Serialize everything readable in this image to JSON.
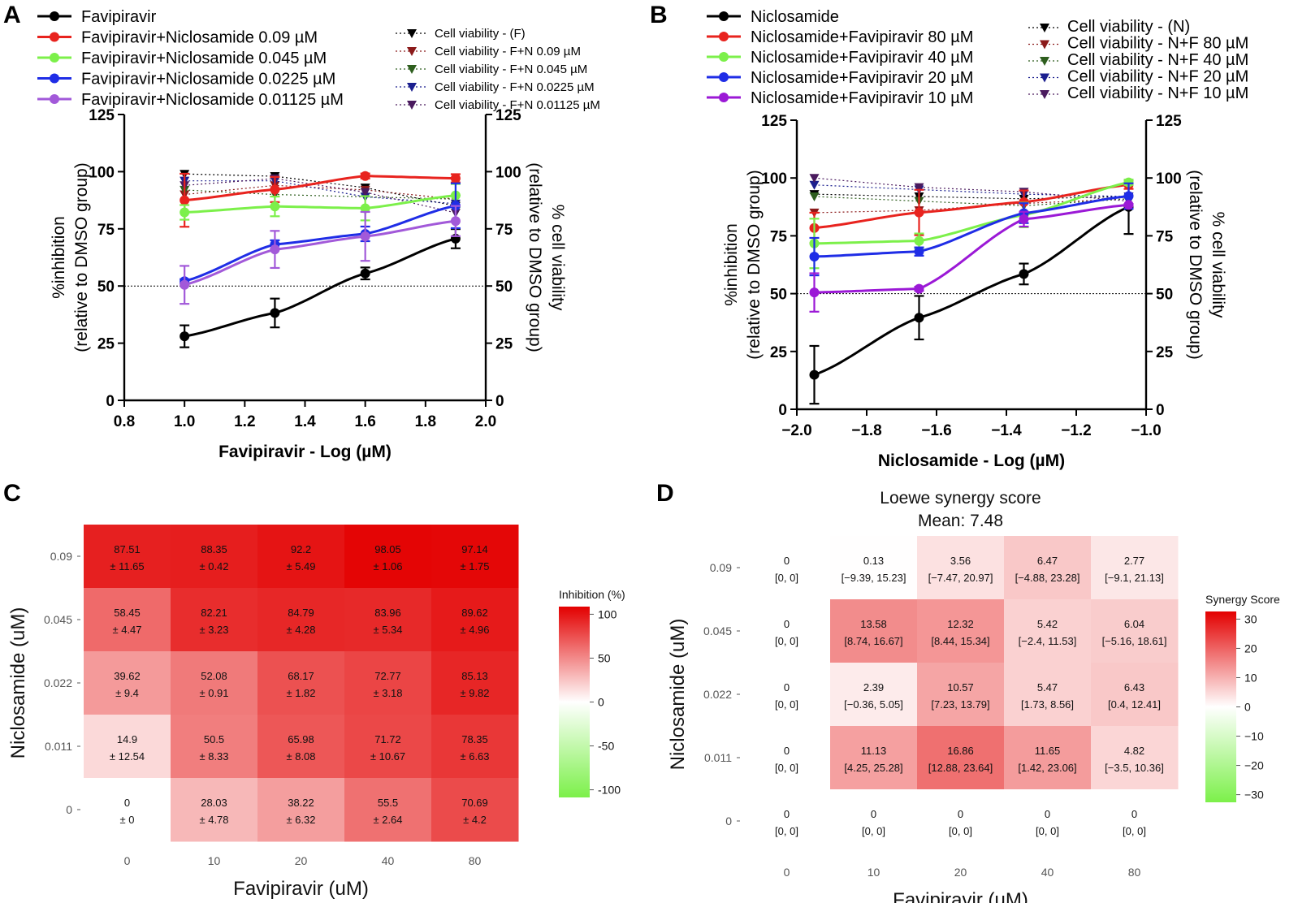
{
  "panels": {
    "A": "A",
    "B": "B",
    "C": "C",
    "D": "D"
  },
  "chart_data": [
    {
      "id": "A",
      "type": "line",
      "xlabel": "Favipiravir - Log (µM)",
      "ylabel_left": [
        "%inhibition",
        "(relative to DMSO group)"
      ],
      "ylabel_right": [
        "% cell viability",
        "(relative to DMSO group)"
      ],
      "xlim": [
        0.8,
        2.0
      ],
      "xticks": [
        "0.8",
        "1.0",
        "1.2",
        "1.4",
        "1.6",
        "1.8",
        "2.0"
      ],
      "ylim": [
        0,
        125
      ],
      "yticks": [
        "0",
        "25",
        "50",
        "75",
        "100",
        "125"
      ],
      "reference_line": 50,
      "x": [
        1.0,
        1.3,
        1.6,
        1.9
      ],
      "series": [
        {
          "name": "Favipiravir",
          "color": "#000000",
          "values": [
            28,
            38.2,
            55.5,
            70.7
          ],
          "errors": [
            4.8,
            6.3,
            2.6,
            4.2
          ]
        },
        {
          "name": "Favipiravir+Niclosamide 0.09 µM",
          "color": "#e8231e",
          "values": [
            87.5,
            92.2,
            98.1,
            97.1
          ],
          "errors": [
            11.6,
            5.5,
            1.1,
            1.8
          ]
        },
        {
          "name": "Favipiravir+Niclosamide 0.045 µM",
          "color": "#7cf04a",
          "values": [
            82.2,
            84.8,
            84,
            89.6
          ],
          "errors": [
            3.2,
            4.3,
            5.3,
            5
          ]
        },
        {
          "name": "Favipiravir+Niclosamide 0.0225 µM",
          "color": "#1f2de6",
          "values": [
            52.1,
            68.2,
            72.8,
            85.1
          ],
          "errors": [
            0.9,
            1.8,
            3.2,
            9.8
          ]
        },
        {
          "name": "Favipiravir+Niclosamide 0.01125 µM",
          "color": "#a259d9",
          "values": [
            50.5,
            66,
            71.7,
            78.4
          ],
          "errors": [
            8.3,
            8.1,
            10.7,
            6.6
          ]
        }
      ],
      "viability_series": [
        {
          "name": "Cell viability - (F)",
          "color": "#000000",
          "values": [
            99,
            98,
            93,
            85
          ]
        },
        {
          "name": "Cell viability - F+N 0.09 µM",
          "color": "#8b1a1a",
          "values": [
            90,
            94,
            92,
            88
          ]
        },
        {
          "name": "Cell viability - F+N 0.045 µM",
          "color": "#2e5e1e",
          "values": [
            92,
            90,
            89,
            88
          ]
        },
        {
          "name": "Cell viability - F+N 0.0225 µM",
          "color": "#1b1f8f",
          "values": [
            96,
            96,
            89,
            86
          ]
        },
        {
          "name": "Cell viability - F+N 0.01125 µM",
          "color": "#4a1a5e",
          "values": [
            94,
            97,
            91,
            82
          ]
        }
      ]
    },
    {
      "id": "B",
      "type": "line",
      "xlabel": "Niclosamide - Log (µM)",
      "ylabel_left": [
        "%inhibition",
        "(relative to DMSO group)"
      ],
      "ylabel_right": [
        "% cell viability",
        "(relative to DMSO group)"
      ],
      "xlim": [
        -2.0,
        -1.0
      ],
      "xticks": [
        "−2.0",
        "−1.8",
        "−1.6",
        "−1.4",
        "−1.2",
        "−1.0"
      ],
      "ylim": [
        0,
        125
      ],
      "yticks": [
        "0",
        "25",
        "50",
        "75",
        "100",
        "125"
      ],
      "reference_line": 50,
      "x": [
        -1.95,
        -1.65,
        -1.35,
        -1.05
      ],
      "series": [
        {
          "name": "Niclosamide",
          "color": "#000000",
          "values": [
            14.9,
            39.6,
            58.5,
            87.5
          ],
          "errors": [
            12.5,
            9.4,
            4.5,
            11.7
          ]
        },
        {
          "name": "Niclosamide+Favipiravir 80 µM",
          "color": "#e8231e",
          "values": [
            78.4,
            85.1,
            89.6,
            97.1
          ],
          "errors": [
            6.6,
            9.8,
            5,
            1.8
          ]
        },
        {
          "name": "Niclosamide+Favipiravir 40 µM",
          "color": "#7cf04a",
          "values": [
            71.7,
            72.8,
            84,
            98.1
          ],
          "errors": [
            10.7,
            3.2,
            5.3,
            1.1
          ]
        },
        {
          "name": "Niclosamide+Favipiravir 20 µM",
          "color": "#1f2de6",
          "values": [
            66,
            68.2,
            84.8,
            92.2
          ],
          "errors": [
            8.1,
            1.8,
            4.3,
            5.5
          ]
        },
        {
          "name": "Niclosamide+Favipiravir 10 µM",
          "color": "#9b19d6",
          "values": [
            50.5,
            52.1,
            82.2,
            88.4
          ],
          "errors": [
            8.3,
            0.9,
            3.2,
            0.4
          ]
        }
      ],
      "viability_series": [
        {
          "name": "Cell viability - (N)",
          "color": "#000000",
          "values": [
            93,
            92,
            91,
            92
          ]
        },
        {
          "name": "Cell viability - N+F 80 µM",
          "color": "#8b1a1a",
          "values": [
            85,
            86,
            89,
            91
          ]
        },
        {
          "name": "Cell viability - N+F 40 µM",
          "color": "#2e5e1e",
          "values": [
            92,
            90,
            88,
            91
          ]
        },
        {
          "name": "Cell viability - N+F 20 µM",
          "color": "#1b1f8f",
          "values": [
            97,
            95,
            93,
            92
          ]
        },
        {
          "name": "Cell viability - N+F 10 µM",
          "color": "#4a1a5e",
          "values": [
            100,
            96,
            94,
            90
          ]
        }
      ]
    },
    {
      "id": "C",
      "type": "heatmap",
      "xlabel": "Favipiravir (uM)",
      "ylabel": "Niclosamide (uM)",
      "xticks": [
        "0",
        "10",
        "20",
        "40",
        "80"
      ],
      "yticks": [
        "0.09",
        "0.045",
        "0.022",
        "0.011",
        "0"
      ],
      "colorbar_title": "Inhibition (%)",
      "colorbar_ticks": [
        "100",
        "50",
        "0",
        "-50",
        "-100"
      ],
      "range": [
        -100,
        100
      ],
      "values": [
        [
          87.51,
          88.35,
          92.2,
          98.05,
          97.14
        ],
        [
          58.45,
          82.21,
          84.79,
          83.96,
          89.62
        ],
        [
          39.62,
          52.08,
          68.17,
          72.77,
          85.13
        ],
        [
          14.9,
          50.5,
          65.98,
          71.72,
          78.35
        ],
        [
          0,
          28.03,
          38.22,
          55.5,
          70.69
        ]
      ],
      "labels": [
        [
          [
            "87.51",
            "± 11.65"
          ],
          [
            "88.35",
            "± 0.42"
          ],
          [
            "92.2",
            "± 5.49"
          ],
          [
            "98.05",
            "± 1.06"
          ],
          [
            "97.14",
            "± 1.75"
          ]
        ],
        [
          [
            "58.45",
            "± 4.47"
          ],
          [
            "82.21",
            "± 3.23"
          ],
          [
            "84.79",
            "± 4.28"
          ],
          [
            "83.96",
            "± 5.34"
          ],
          [
            "89.62",
            "± 4.96"
          ]
        ],
        [
          [
            "39.62",
            "± 9.4"
          ],
          [
            "52.08",
            "± 0.91"
          ],
          [
            "68.17",
            "± 1.82"
          ],
          [
            "72.77",
            "± 3.18"
          ],
          [
            "85.13",
            "± 9.82"
          ]
        ],
        [
          [
            "14.9",
            "± 12.54"
          ],
          [
            "50.5",
            "± 8.33"
          ],
          [
            "65.98",
            "± 8.08"
          ],
          [
            "71.72",
            "± 10.67"
          ],
          [
            "78.35",
            "± 6.63"
          ]
        ],
        [
          [
            "0",
            "± 0"
          ],
          [
            "28.03",
            "± 4.78"
          ],
          [
            "38.22",
            "± 6.32"
          ],
          [
            "55.5",
            "± 2.64"
          ],
          [
            "70.69",
            "± 4.2"
          ]
        ]
      ]
    },
    {
      "id": "D",
      "type": "heatmap",
      "title": "Loewe synergy score",
      "subtitle": "Mean: 7.48",
      "xlabel": "Favipiravir (uM)",
      "ylabel": "Niclosamide (uM)",
      "xticks": [
        "0",
        "10",
        "20",
        "40",
        "80"
      ],
      "yticks": [
        "0.09",
        "0.045",
        "0.022",
        "0.011",
        "0"
      ],
      "colorbar_title": "Synergy Score",
      "colorbar_ticks": [
        "30",
        "20",
        "10",
        "0",
        "−10",
        "−20",
        "−30"
      ],
      "range": [
        -30,
        30
      ],
      "values": [
        [
          0,
          0.13,
          3.56,
          6.47,
          2.77
        ],
        [
          0,
          13.58,
          12.32,
          5.42,
          6.04
        ],
        [
          0,
          2.39,
          10.57,
          5.47,
          6.43
        ],
        [
          0,
          11.13,
          16.86,
          11.65,
          4.82
        ],
        [
          0,
          0,
          0,
          0,
          0
        ]
      ],
      "labels": [
        [
          [
            "0",
            "[0, 0]"
          ],
          [
            "0.13",
            "[−9.39, 15.23]"
          ],
          [
            "3.56",
            "[−7.47, 20.97]"
          ],
          [
            "6.47",
            "[−4.88, 23.28]"
          ],
          [
            "2.77",
            "[−9.1, 21.13]"
          ]
        ],
        [
          [
            "0",
            "[0, 0]"
          ],
          [
            "13.58",
            "[8.74, 16.67]"
          ],
          [
            "12.32",
            "[8.44, 15.34]"
          ],
          [
            "5.42",
            "[−2.4, 11.53]"
          ],
          [
            "6.04",
            "[−5.16, 18.61]"
          ]
        ],
        [
          [
            "0",
            "[0, 0]"
          ],
          [
            "2.39",
            "[−0.36, 5.05]"
          ],
          [
            "10.57",
            "[7.23, 13.79]"
          ],
          [
            "5.47",
            "[1.73, 8.56]"
          ],
          [
            "6.43",
            "[0.4, 12.41]"
          ]
        ],
        [
          [
            "0",
            "[0, 0]"
          ],
          [
            "11.13",
            "[4.25, 25.28]"
          ],
          [
            "16.86",
            "[12.88, 23.64]"
          ],
          [
            "11.65",
            "[1.42, 23.06]"
          ],
          [
            "4.82",
            "[−3.5, 10.36]"
          ]
        ],
        [
          [
            "0",
            "[0, 0]"
          ],
          [
            "0",
            "[0, 0]"
          ],
          [
            "0",
            "[0, 0]"
          ],
          [
            "0",
            "[0, 0]"
          ],
          [
            "0",
            "[0, 0]"
          ]
        ]
      ]
    }
  ]
}
